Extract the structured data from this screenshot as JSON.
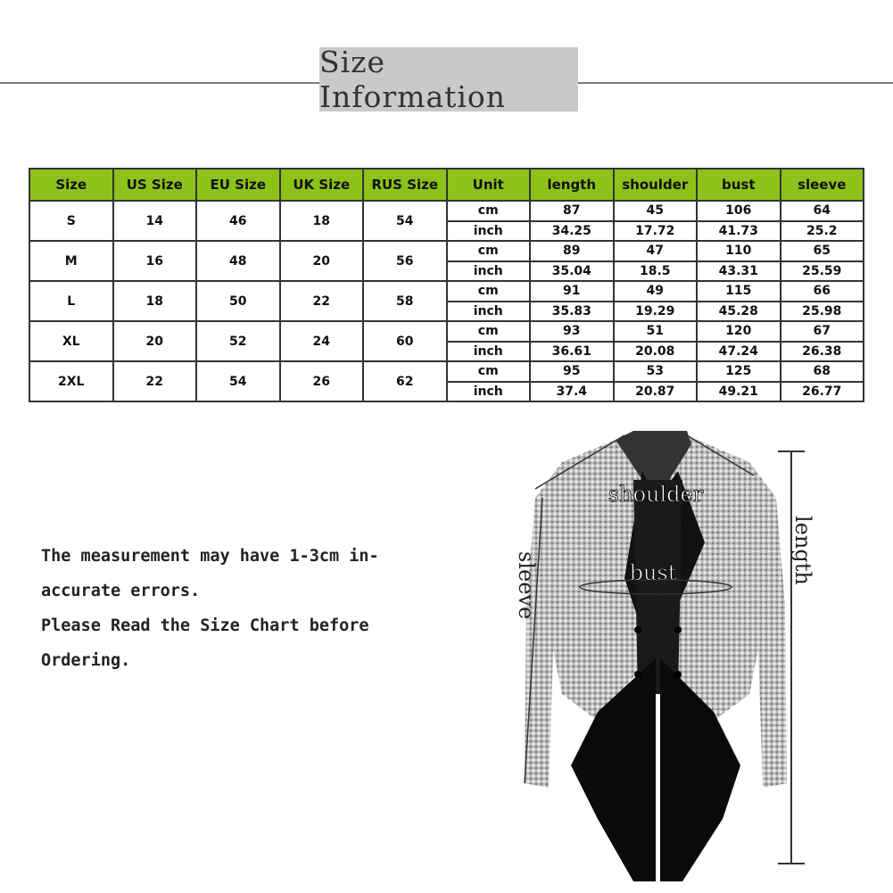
{
  "title": "Size Information",
  "table": {
    "headers": [
      "Size",
      "US Size",
      "EU Size",
      "UK Size",
      "RUS Size",
      "Unit",
      "length",
      "shoulder",
      "bust",
      "sleeve"
    ],
    "rows": [
      {
        "size": "S",
        "us": "14",
        "eu": "46",
        "uk": "18",
        "rus": "54",
        "cm": [
          "cm",
          "87",
          "45",
          "106",
          "64"
        ],
        "inch": [
          "inch",
          "34.25",
          "17.72",
          "41.73",
          "25.2"
        ]
      },
      {
        "size": "M",
        "us": "16",
        "eu": "48",
        "uk": "20",
        "rus": "56",
        "cm": [
          "cm",
          "89",
          "47",
          "110",
          "65"
        ],
        "inch": [
          "inch",
          "35.04",
          "18.5",
          "43.31",
          "25.59"
        ]
      },
      {
        "size": "L",
        "us": "18",
        "eu": "50",
        "uk": "22",
        "rus": "58",
        "cm": [
          "cm",
          "91",
          "49",
          "115",
          "66"
        ],
        "inch": [
          "inch",
          "35.83",
          "19.29",
          "45.28",
          "25.98"
        ]
      },
      {
        "size": "XL",
        "us": "20",
        "eu": "52",
        "uk": "24",
        "rus": "60",
        "cm": [
          "cm",
          "93",
          "51",
          "120",
          "67"
        ],
        "inch": [
          "inch",
          "36.61",
          "20.08",
          "47.24",
          "26.38"
        ]
      },
      {
        "size": "2XL",
        "us": "22",
        "eu": "54",
        "uk": "26",
        "rus": "62",
        "cm": [
          "cm",
          "95",
          "53",
          "125",
          "68"
        ],
        "inch": [
          "inch",
          "37.4",
          "20.87",
          "49.21",
          "26.77"
        ]
      }
    ]
  },
  "note": [
    "The measurement may have 1-3cm in-",
    "accurate errors.",
    "Please Read the Size Chart before",
    "Ordering."
  ],
  "diagram": {
    "shoulder": "shoulder",
    "bust": "bust",
    "sleeve": "sleeve",
    "length": "length"
  },
  "colors": {
    "header_green": "#8cc21a",
    "title_box": "#c9c9c9"
  }
}
